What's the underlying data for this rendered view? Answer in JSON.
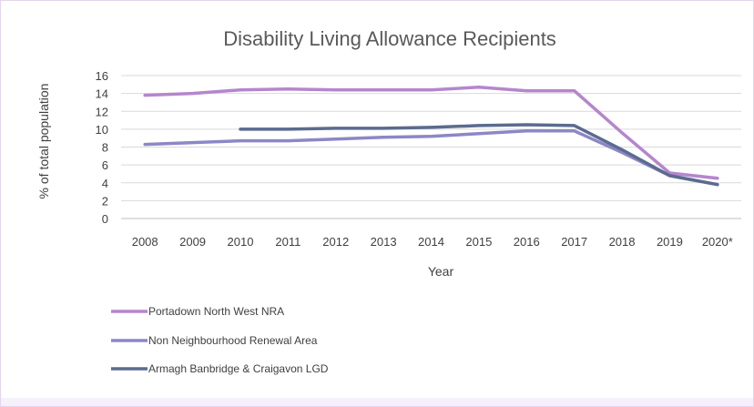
{
  "chart_data": {
    "type": "line",
    "title": "Disability Living Allowance Recipients",
    "xlabel": "Year",
    "ylabel": "% of total population",
    "categories": [
      "2008",
      "2009",
      "2010",
      "2011",
      "2012",
      "2013",
      "2014",
      "2015",
      "2016",
      "2017",
      "2018",
      "2019",
      "2020*"
    ],
    "ylim": [
      0,
      16
    ],
    "yticks": [
      "0",
      "2",
      "4",
      "6",
      "8",
      "10",
      "12",
      "14",
      "16"
    ],
    "grid": true,
    "legend_position": "bottom-left",
    "series": [
      {
        "name": "Portadown North West NRA",
        "color": "#b586cc",
        "values": [
          13.8,
          14.0,
          14.4,
          14.5,
          14.4,
          14.4,
          14.4,
          14.7,
          14.3,
          14.3,
          9.6,
          5.1,
          4.5
        ]
      },
      {
        "name": "Non Neighbourhood Renewal Area",
        "color": "#8c87c6",
        "values": [
          8.3,
          8.5,
          8.7,
          8.7,
          8.9,
          9.1,
          9.2,
          9.5,
          9.8,
          9.8,
          7.4,
          4.8,
          3.8
        ]
      },
      {
        "name": "Armagh Banbridge & Craigavon LGD",
        "color": "#5b6b8f",
        "values": [
          null,
          null,
          10.0,
          10.0,
          10.1,
          10.1,
          10.2,
          10.4,
          10.5,
          10.4,
          7.7,
          4.8,
          3.8
        ]
      }
    ]
  }
}
